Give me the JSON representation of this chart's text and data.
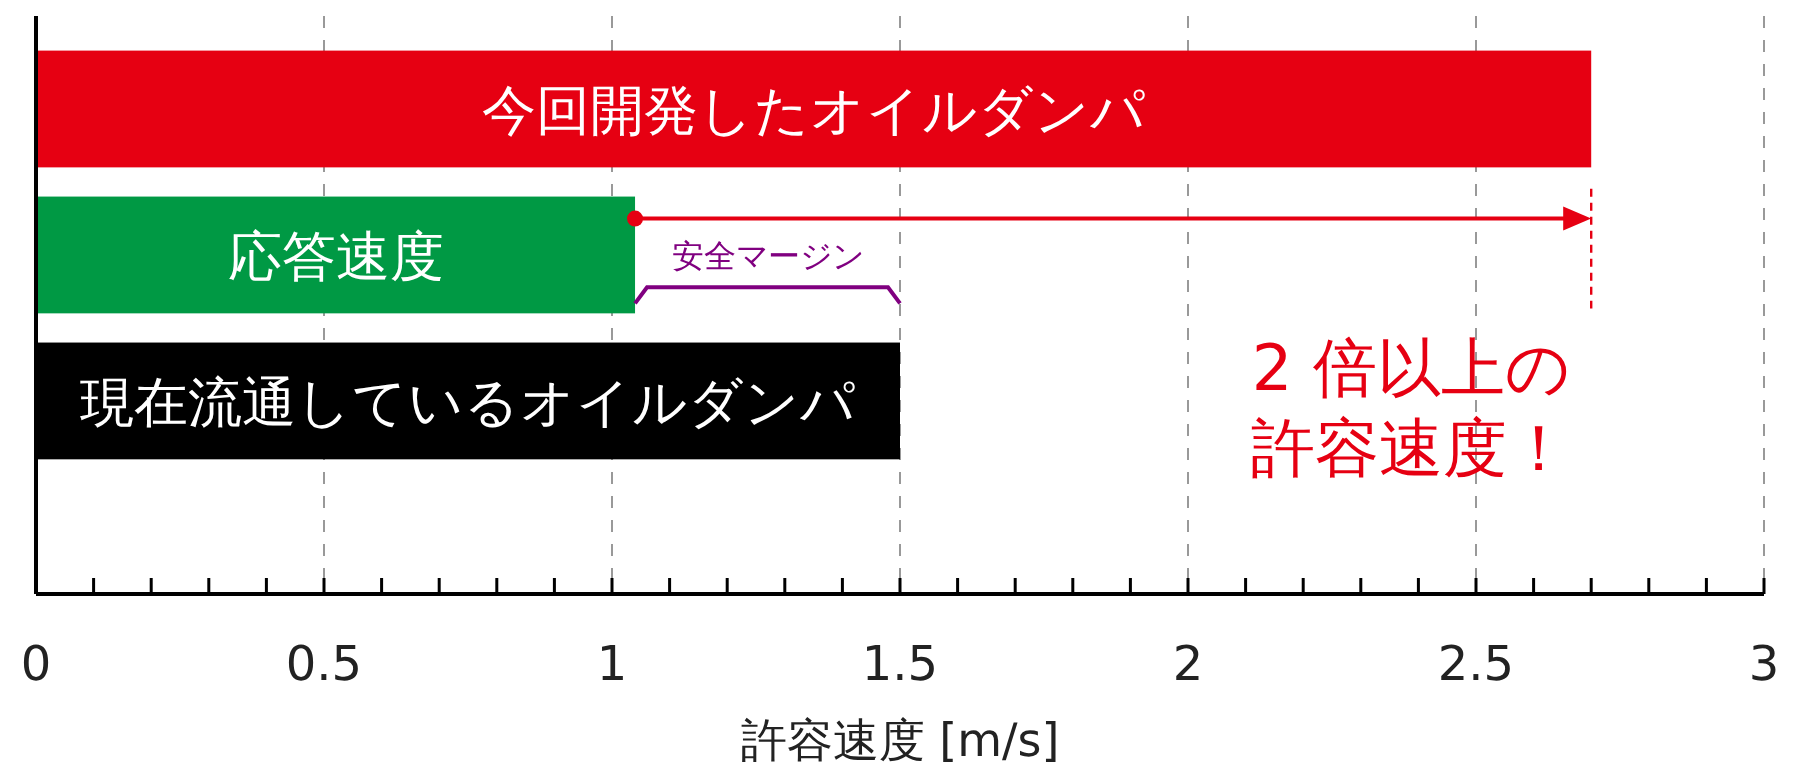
{
  "chart_data": {
    "type": "bar",
    "orientation": "horizontal",
    "xlabel": "許容速度 [m/s]",
    "categories": [
      "今回開発したオイルダンパ",
      "応答速度",
      "現在流通しているオイルダンパ"
    ],
    "values": [
      2.7,
      1.04,
      1.5
    ],
    "colors": [
      "#e60012",
      "#009944",
      "#000000"
    ],
    "xlim": [
      0,
      3
    ],
    "xticks": [
      0,
      0.5,
      1,
      1.5,
      2,
      2.5,
      3
    ],
    "grid": "x",
    "tick_labels": "x",
    "annotations": [
      "安全マージン",
      "2 倍以上の",
      "許容速度！"
    ]
  }
}
